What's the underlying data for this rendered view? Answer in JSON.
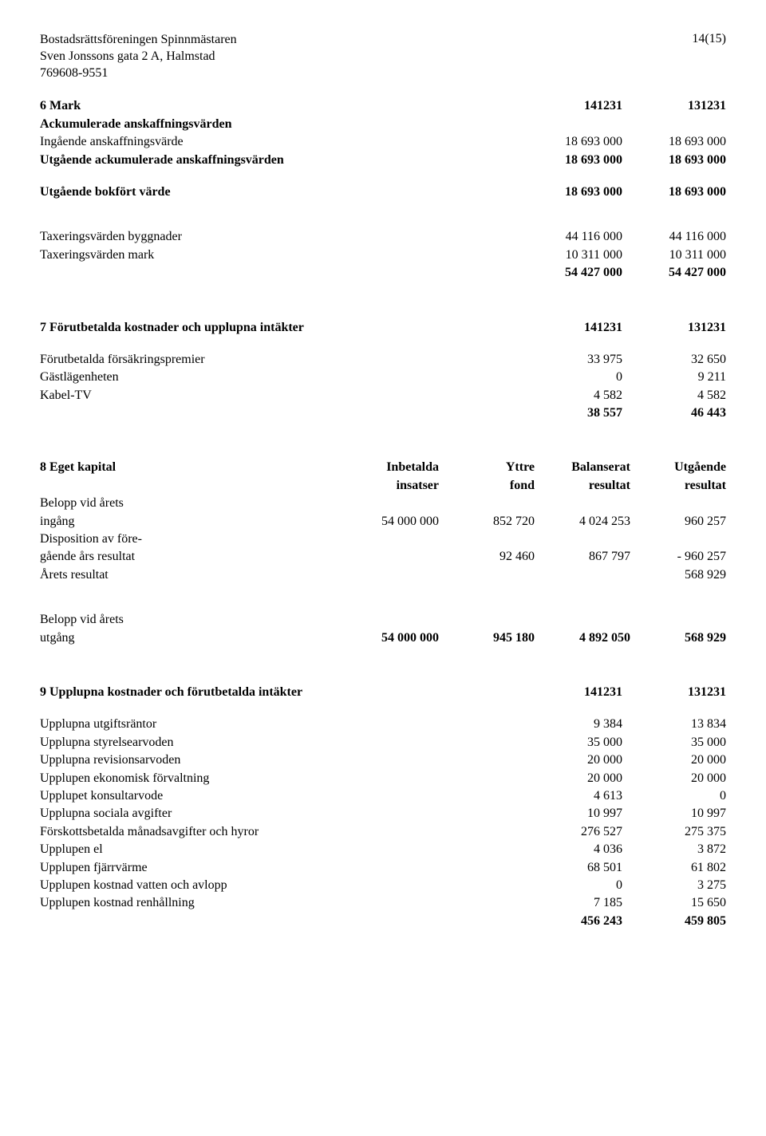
{
  "header": {
    "line1": "Bostadsrättsföreningen Spinnmästaren",
    "line2": "Sven Jonssons gata 2 A, Halmstad",
    "line3": "769608-9551",
    "page": "14(15)"
  },
  "sec6": {
    "title_left": "6 Mark",
    "title_c1": "141231",
    "title_c2": "131231",
    "sub1": "Ackumulerade anskaffningsvärden",
    "r1_l": "Ingående anskaffningsvärde",
    "r1_c1": "18 693 000",
    "r1_c2": "18 693 000",
    "r2_l": "Utgående ackumulerade anskaffningsvärden",
    "r2_c1": "18 693 000",
    "r2_c2": "18 693 000",
    "r3_l": "Utgående bokfört värde",
    "r3_c1": "18 693 000",
    "r3_c2": "18 693 000",
    "r4_l": "Taxeringsvärden byggnader",
    "r4_c1": "44 116 000",
    "r4_c2": "44 116 000",
    "r5_l": "Taxeringsvärden mark",
    "r5_c1": "10 311 000",
    "r5_c2": "10 311 000",
    "r6_c1": "54 427 000",
    "r6_c2": "54 427 000"
  },
  "sec7": {
    "title_left": "7 Förutbetalda kostnader och upplupna intäkter",
    "title_c1": "141231",
    "title_c2": "131231",
    "r1_l": "Förutbetalda försäkringspremier",
    "r1_c1": "33 975",
    "r1_c2": "32 650",
    "r2_l": "Gästlägenheten",
    "r2_c1": "0",
    "r2_c2": "9 211",
    "r3_l": "Kabel-TV",
    "r3_c1": "4 582",
    "r3_c2": "4 582",
    "r4_c1": "38 557",
    "r4_c2": "46 443"
  },
  "sec8": {
    "title_left": "8 Eget kapital",
    "h1a": "Inbetalda",
    "h1b": "insatser",
    "h2a": "Yttre",
    "h2b": "fond",
    "h3a": "Balanserat",
    "h3b": "resultat",
    "h4a": "Utgående",
    "h4b": "resultat",
    "r1_l1": "Belopp vid årets",
    "r1_l2": "ingång",
    "r1_c1": "54 000 000",
    "r1_c2": "852 720",
    "r1_c3": "4 024 253",
    "r1_c4": "960 257",
    "r2_l1": "Disposition av före-",
    "r2_l2": "gående års resultat",
    "r2_c2": "92 460",
    "r2_c3": "867 797",
    "r2_c4": "- 960 257",
    "r3_l": "Årets resultat",
    "r3_c4": "568 929",
    "r4_l1": "Belopp vid årets",
    "r4_l2": "utgång",
    "r4_c1": "54 000 000",
    "r4_c2": "945 180",
    "r4_c3": "4 892 050",
    "r4_c4": "568 929"
  },
  "sec9": {
    "title_left": "9 Upplupna kostnader och förutbetalda intäkter",
    "title_c1": "141231",
    "title_c2": "131231",
    "r1_l": "Upplupna utgiftsräntor",
    "r1_c1": "9 384",
    "r1_c2": "13 834",
    "r2_l": "Upplupna styrelsearvoden",
    "r2_c1": "35 000",
    "r2_c2": "35 000",
    "r3_l": "Upplupna revisionsarvoden",
    "r3_c1": "20 000",
    "r3_c2": "20 000",
    "r4_l": "Upplupen ekonomisk förvaltning",
    "r4_c1": "20 000",
    "r4_c2": "20 000",
    "r5_l": "Upplupet konsultarvode",
    "r5_c1": "4 613",
    "r5_c2": "0",
    "r6_l": "Upplupna sociala avgifter",
    "r6_c1": "10 997",
    "r6_c2": "10 997",
    "r7_l": "Förskottsbetalda månadsavgifter och hyror",
    "r7_c1": "276 527",
    "r7_c2": "275 375",
    "r8_l": "Upplupen el",
    "r8_c1": "4 036",
    "r8_c2": "3 872",
    "r9_l": "Upplupen fjärrvärme",
    "r9_c1": "68 501",
    "r9_c2": "61 802",
    "r10_l": "Upplupen kostnad vatten och avlopp",
    "r10_c1": "0",
    "r10_c2": "3 275",
    "r11_l": "Upplupen kostnad renhållning",
    "r11_c1": "7 185",
    "r11_c2": "15 650",
    "r12_c1": "456 243",
    "r12_c2": "459 805"
  }
}
